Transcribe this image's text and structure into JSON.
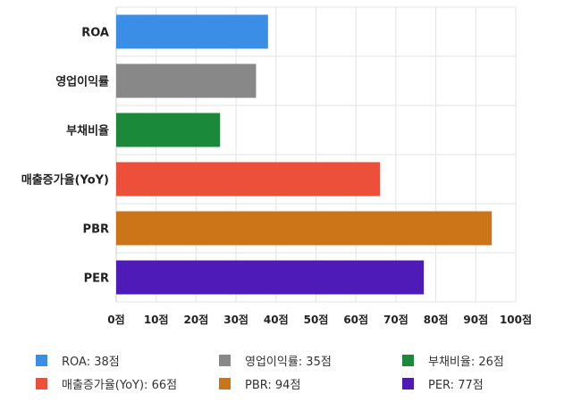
{
  "chart_data": {
    "type": "bar",
    "orientation": "horizontal",
    "categories": [
      "ROA",
      "영업이익률",
      "부채비율",
      "매출증가율(YoY)",
      "PBR",
      "PER"
    ],
    "values": [
      38,
      35,
      26,
      66,
      94,
      77
    ],
    "colors": [
      "#3a8ee6",
      "#888888",
      "#1a8a3a",
      "#ec4f3a",
      "#cc7418",
      "#4e1ab8"
    ],
    "xlim": [
      0,
      100
    ],
    "xticks": [
      0,
      10,
      20,
      30,
      40,
      50,
      60,
      70,
      80,
      90,
      100
    ],
    "tick_suffix": "점",
    "grid": true,
    "legend_position": "bottom",
    "legend": [
      "ROA: 38점",
      "영업이익률: 35점",
      "부채비율: 26점",
      "매출증가율(YoY): 66점",
      "PBR: 94점",
      "PER: 77점"
    ]
  }
}
